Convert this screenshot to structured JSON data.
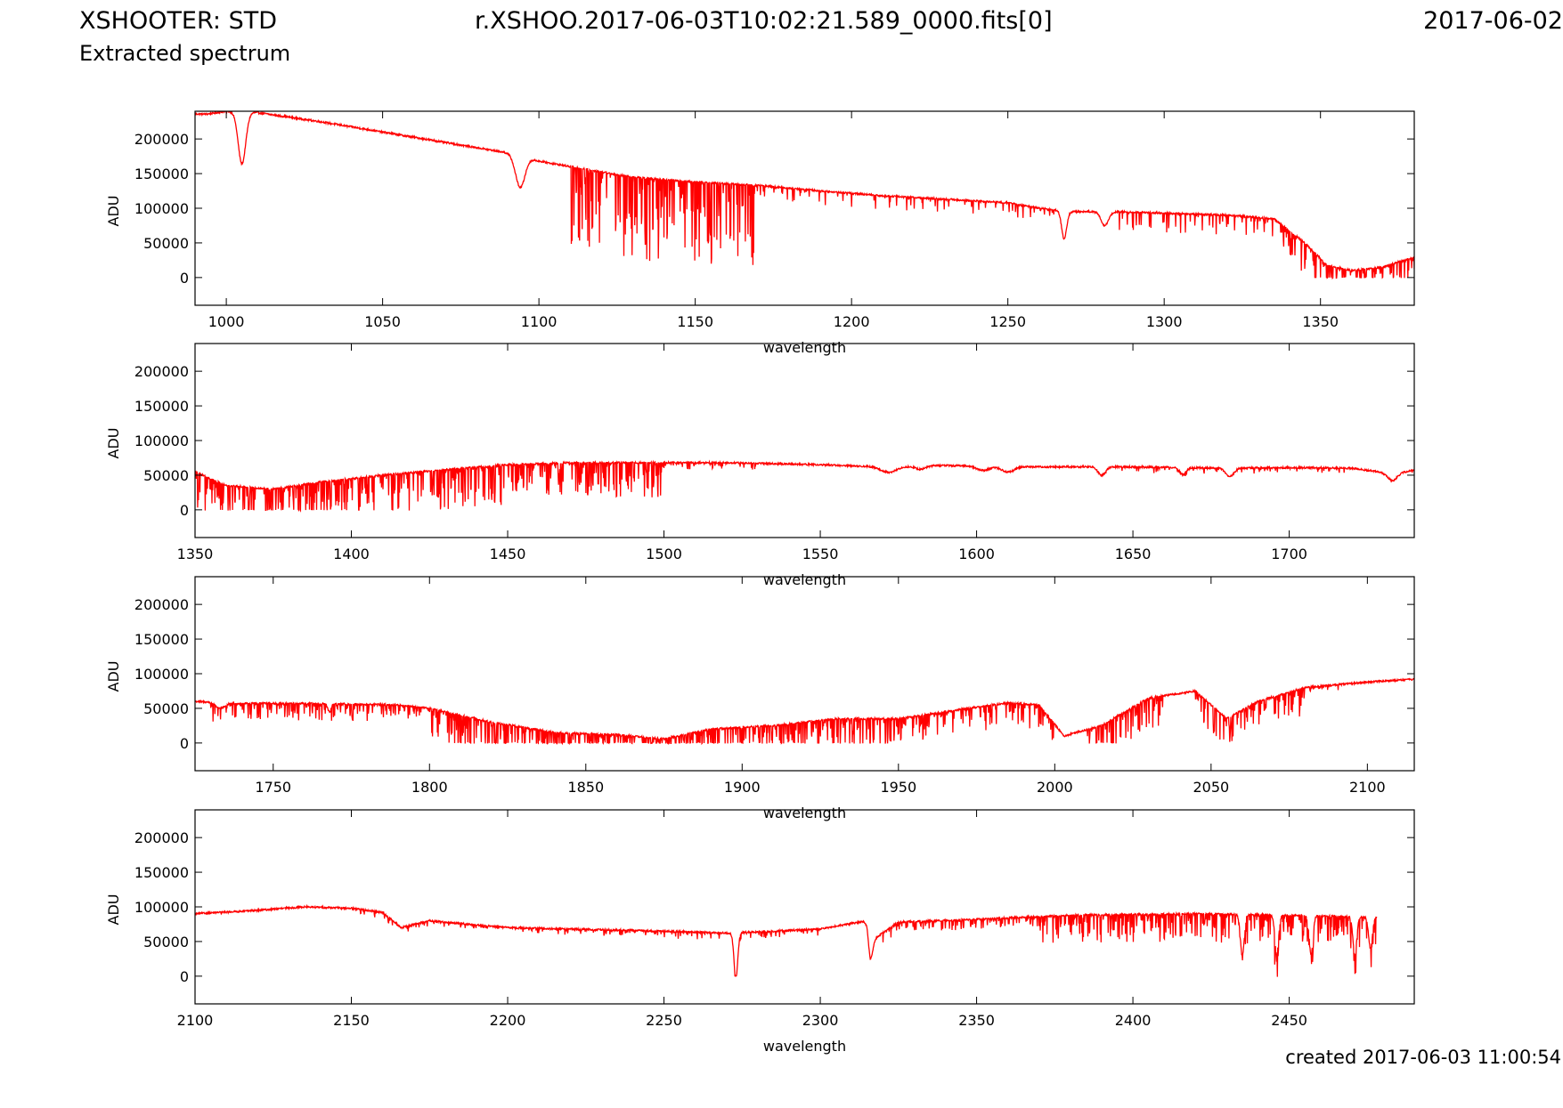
{
  "header": {
    "instrument": "XSHOOTER: STD",
    "subtitle": "Extracted spectrum",
    "filename": "r.XSHOO.2017-06-03T10:02:21.589_0000.fits[0]",
    "date": "2017-06-02"
  },
  "footer": {
    "created": "created 2017-06-03 11:00:54"
  },
  "style": {
    "line_color": "#ff0000",
    "axis_color": "#000000",
    "background": "#ffffff"
  },
  "chart_data": [
    {
      "type": "line",
      "xlabel": "wavelength",
      "ylabel": "ADU",
      "xlim": [
        990,
        1380
      ],
      "ylim": [
        -40000,
        240000
      ],
      "xticks": [
        1000,
        1050,
        1100,
        1150,
        1200,
        1250,
        1300,
        1350
      ],
      "yticks": [
        0,
        50000,
        100000,
        150000,
        200000
      ],
      "series": [
        {
          "continuum": [
            [
              994,
              236000
            ],
            [
              1000,
              240000
            ],
            [
              1010,
              238000
            ],
            [
              1030,
              225000
            ],
            [
              1050,
              210000
            ],
            [
              1070,
              195000
            ],
            [
              1090,
              180000
            ],
            [
              1100,
              168000
            ],
            [
              1110,
              160000
            ],
            [
              1130,
              145000
            ],
            [
              1150,
              138000
            ],
            [
              1170,
              133000
            ],
            [
              1190,
              125000
            ],
            [
              1210,
              118000
            ],
            [
              1230,
              113000
            ],
            [
              1250,
              108000
            ],
            [
              1260,
              100000
            ],
            [
              1270,
              95000
            ],
            [
              1285,
              95000
            ],
            [
              1300,
              93000
            ],
            [
              1320,
              90000
            ],
            [
              1335,
              85000
            ],
            [
              1345,
              50000
            ],
            [
              1352,
              18000
            ],
            [
              1360,
              10000
            ],
            [
              1370,
              15000
            ],
            [
              1380,
              30000
            ]
          ],
          "absorption": [
            [
              1005,
              75000,
              1.2
            ],
            [
              1094,
              45000,
              1.5
            ],
            [
              1268,
              40000,
              0.8
            ],
            [
              1281,
              20000,
              1.2
            ]
          ],
          "forests": [
            [
              1110,
              1170,
              120000,
              0.8
            ],
            [
              1170,
              1260,
              20000,
              0.3
            ],
            [
              1255,
              1265,
              15000,
              0.4
            ],
            [
              1285,
              1342,
              30000,
              0.4
            ],
            [
              1338,
              1380,
              50000,
              0.8
            ]
          ]
        }
      ]
    },
    {
      "type": "line",
      "xlabel": "wavelength",
      "ylabel": "ADU",
      "xlim": [
        1350,
        1740
      ],
      "ylim": [
        -40000,
        240000
      ],
      "xticks": [
        1350,
        1400,
        1450,
        1500,
        1550,
        1600,
        1650,
        1700
      ],
      "yticks": [
        0,
        50000,
        100000,
        150000,
        200000
      ],
      "series": [
        {
          "continuum": [
            [
              1350,
              55000
            ],
            [
              1360,
              35000
            ],
            [
              1375,
              30000
            ],
            [
              1390,
              40000
            ],
            [
              1410,
              50000
            ],
            [
              1430,
              58000
            ],
            [
              1450,
              65000
            ],
            [
              1470,
              68000
            ],
            [
              1500,
              68000
            ],
            [
              1520,
              68000
            ],
            [
              1550,
              65000
            ],
            [
              1570,
              62000
            ],
            [
              1590,
              64000
            ],
            [
              1600,
              63000
            ],
            [
              1620,
              62000
            ],
            [
              1650,
              62000
            ],
            [
              1680,
              60000
            ],
            [
              1700,
              61000
            ],
            [
              1720,
              60000
            ],
            [
              1733,
              52000
            ],
            [
              1740,
              57000
            ]
          ],
          "absorption": [
            [
              1572,
              8000,
              2.5
            ],
            [
              1582,
              5000,
              1.5
            ],
            [
              1602,
              6000,
              2.0
            ],
            [
              1610,
              8000,
              2.0
            ],
            [
              1640,
              12000,
              1.2
            ],
            [
              1666,
              10000,
              1.0
            ],
            [
              1681,
              12000,
              1.3
            ],
            [
              1733,
              10000,
              1.5
            ]
          ],
          "forests": [
            [
              1350,
              1400,
              55000,
              1.0
            ],
            [
              1400,
              1460,
              60000,
              1.0
            ],
            [
              1460,
              1500,
              50000,
              0.9
            ],
            [
              1500,
              1530,
              10000,
              0.5
            ],
            [
              1640,
              1720,
              8000,
              0.3
            ]
          ]
        }
      ]
    },
    {
      "type": "line",
      "xlabel": "wavelength",
      "ylabel": "ADU",
      "xlim": [
        1725,
        2115
      ],
      "ylim": [
        -40000,
        240000
      ],
      "xticks": [
        1750,
        1800,
        1850,
        1900,
        1950,
        2000,
        2050,
        2100
      ],
      "yticks": [
        0,
        50000,
        100000,
        150000,
        200000
      ],
      "series": [
        {
          "continuum": [
            [
              1725,
              60000
            ],
            [
              1740,
              57000
            ],
            [
              1760,
              57000
            ],
            [
              1790,
              55000
            ],
            [
              1800,
              50000
            ],
            [
              1820,
              30000
            ],
            [
              1840,
              15000
            ],
            [
              1860,
              12000
            ],
            [
              1875,
              6000
            ],
            [
              1890,
              20000
            ],
            [
              1910,
              25000
            ],
            [
              1930,
              35000
            ],
            [
              1950,
              35000
            ],
            [
              1965,
              45000
            ],
            [
              1985,
              58000
            ],
            [
              1995,
              55000
            ],
            [
              2003,
              10000
            ],
            [
              2015,
              25000
            ],
            [
              2030,
              65000
            ],
            [
              2045,
              75000
            ],
            [
              2055,
              35000
            ],
            [
              2065,
              60000
            ],
            [
              2080,
              80000
            ],
            [
              2100,
              88000
            ],
            [
              2115,
              92000
            ]
          ],
          "absorption": [
            [
              1733,
              8000,
              1.5
            ],
            [
              1768,
              12000,
              0.5
            ]
          ],
          "forests": [
            [
              1730,
              1800,
              25000,
              0.8
            ],
            [
              1800,
              1950,
              50000,
              1.0
            ],
            [
              1950,
              2000,
              35000,
              0.9
            ],
            [
              2010,
              2035,
              45000,
              0.9
            ],
            [
              2045,
              2080,
              40000,
              0.9
            ],
            [
              2080,
              2100,
              8000,
              0.4
            ]
          ]
        }
      ]
    },
    {
      "type": "line",
      "xlabel": "wavelength",
      "ylabel": "ADU",
      "xlim": [
        2100,
        2490
      ],
      "ylim": [
        -40000,
        240000
      ],
      "xticks": [
        2100,
        2150,
        2200,
        2250,
        2300,
        2350,
        2400,
        2450
      ],
      "yticks": [
        0,
        50000,
        100000,
        150000,
        200000
      ],
      "series": [
        {
          "continuum": [
            [
              2100,
              90000
            ],
            [
              2120,
              95000
            ],
            [
              2135,
              100000
            ],
            [
              2150,
              98000
            ],
            [
              2160,
              92000
            ],
            [
              2166,
              70000
            ],
            [
              2175,
              80000
            ],
            [
              2200,
              70000
            ],
            [
              2220,
              68000
            ],
            [
              2250,
              65000
            ],
            [
              2270,
              62000
            ],
            [
              2300,
              68000
            ],
            [
              2315,
              80000
            ],
            [
              2316,
              50000
            ],
            [
              2325,
              78000
            ],
            [
              2350,
              82000
            ],
            [
              2380,
              88000
            ],
            [
              2420,
              90000
            ],
            [
              2450,
              88000
            ],
            [
              2478,
              85000
            ]
          ],
          "absorption": [
            [
              2273,
              65000,
              0.6
            ],
            [
              2316,
              25000,
              0.8
            ],
            [
              2435,
              60000,
              0.6
            ],
            [
              2446,
              55000,
              0.6
            ],
            [
              2457,
              55000,
              0.6
            ],
            [
              2471,
              55000,
              0.6
            ],
            [
              2476,
              45000,
              0.6
            ]
          ],
          "forests": [
            [
              2150,
              2250,
              8000,
              0.4
            ],
            [
              2250,
              2300,
              10000,
              0.4
            ],
            [
              2320,
              2370,
              15000,
              0.6
            ],
            [
              2370,
              2478,
              40000,
              0.9
            ]
          ],
          "end": 2478
        }
      ]
    }
  ]
}
